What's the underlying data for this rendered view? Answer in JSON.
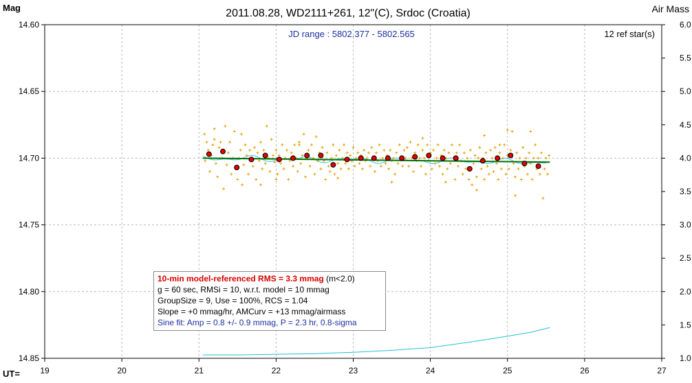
{
  "chart_data": {
    "type": "scatter",
    "title": "2011.08.28, WD2111+261, 12\"(C), Srdoc (Croatia)",
    "ylabel": "Mag",
    "y2label": "Air Mass",
    "xlabel": "UT=",
    "jd_range": "JD range : 5802.377 - 5802.565",
    "ref_stars": "12 ref star(s)",
    "xlim": [
      19,
      27
    ],
    "ylim": [
      14.85,
      14.6
    ],
    "y2lim": [
      1.0,
      6.0
    ],
    "grid": true,
    "x_ticks": [
      "19",
      "20",
      "21",
      "22",
      "23",
      "24",
      "25",
      "26",
      "27"
    ],
    "y_ticks": [
      "14.60",
      "14.65",
      "14.70",
      "14.75",
      "14.80",
      "14.85"
    ],
    "y2_ticks": [
      "6.0",
      "5.5",
      "5.0",
      "4.5",
      "4.0",
      "3.5",
      "3.0",
      "2.5",
      "2.0",
      "1.5",
      "1.0"
    ],
    "colors": {
      "raw": "#e0a000",
      "binned": "#e00000",
      "trend": "#007000",
      "sine": "#30c8e0",
      "airmass": "#20c0d0",
      "grid": "#bbbbbb"
    },
    "raw_points": [
      [
        21.07,
        14.682
      ],
      [
        21.08,
        14.702
      ],
      [
        21.1,
        14.688
      ],
      [
        21.12,
        14.694
      ],
      [
        21.14,
        14.71
      ],
      [
        21.16,
        14.698
      ],
      [
        21.18,
        14.69
      ],
      [
        21.2,
        14.686
      ],
      [
        21.22,
        14.704
      ],
      [
        21.24,
        14.714
      ],
      [
        21.26,
        14.692
      ],
      [
        21.28,
        14.688
      ],
      [
        21.3,
        14.7
      ],
      [
        21.32,
        14.723
      ],
      [
        21.34,
        14.676
      ],
      [
        21.36,
        14.705
      ],
      [
        21.38,
        14.696
      ],
      [
        21.4,
        14.688
      ],
      [
        21.42,
        14.712
      ],
      [
        21.44,
        14.7
      ],
      [
        21.46,
        14.68
      ],
      [
        21.48,
        14.708
      ],
      [
        21.5,
        14.716
      ],
      [
        21.52,
        14.7
      ],
      [
        21.54,
        14.694
      ],
      [
        21.56,
        14.72
      ],
      [
        21.58,
        14.705
      ],
      [
        21.6,
        14.69
      ],
      [
        21.62,
        14.698
      ],
      [
        21.64,
        14.712
      ],
      [
        21.66,
        14.694
      ],
      [
        21.68,
        14.7
      ],
      [
        21.7,
        14.706
      ],
      [
        21.72,
        14.692
      ],
      [
        21.74,
        14.716
      ],
      [
        21.76,
        14.696
      ],
      [
        21.78,
        14.702
      ],
      [
        21.8,
        14.688
      ],
      [
        21.82,
        14.708
      ],
      [
        21.84,
        14.694
      ],
      [
        21.86,
        14.704
      ],
      [
        21.88,
        14.676
      ],
      [
        21.9,
        14.7
      ],
      [
        21.92,
        14.71
      ],
      [
        21.94,
        14.686
      ],
      [
        21.96,
        14.698
      ],
      [
        21.98,
        14.703
      ],
      [
        22.0,
        14.694
      ],
      [
        22.02,
        14.712
      ],
      [
        22.04,
        14.698
      ],
      [
        22.06,
        14.704
      ],
      [
        22.08,
        14.69
      ],
      [
        22.1,
        14.708
      ],
      [
        22.12,
        14.7
      ],
      [
        22.14,
        14.694
      ],
      [
        22.16,
        14.716
      ],
      [
        22.18,
        14.702
      ],
      [
        22.2,
        14.696
      ],
      [
        22.22,
        14.706
      ],
      [
        22.24,
        14.69
      ],
      [
        22.26,
        14.7
      ],
      [
        22.28,
        14.71
      ],
      [
        22.3,
        14.688
      ],
      [
        22.32,
        14.704
      ],
      [
        22.34,
        14.698
      ],
      [
        22.36,
        14.682
      ],
      [
        22.38,
        14.714
      ],
      [
        22.4,
        14.7
      ],
      [
        22.42,
        14.694
      ],
      [
        22.44,
        14.706
      ],
      [
        22.46,
        14.69
      ],
      [
        22.48,
        14.7
      ],
      [
        22.5,
        14.712
      ],
      [
        22.52,
        14.684
      ],
      [
        22.54,
        14.702
      ],
      [
        22.56,
        14.696
      ],
      [
        22.58,
        14.708
      ],
      [
        22.6,
        14.692
      ],
      [
        22.62,
        14.702
      ],
      [
        22.64,
        14.716
      ],
      [
        22.66,
        14.696
      ],
      [
        22.68,
        14.706
      ],
      [
        22.7,
        14.71
      ],
      [
        22.72,
        14.7
      ],
      [
        22.74,
        14.69
      ],
      [
        22.76,
        14.712
      ],
      [
        22.78,
        14.698
      ],
      [
        22.8,
        14.704
      ],
      [
        22.82,
        14.694
      ],
      [
        22.84,
        14.708
      ],
      [
        22.86,
        14.7
      ],
      [
        22.88,
        14.69
      ],
      [
        22.9,
        14.704
      ],
      [
        22.92,
        14.696
      ],
      [
        22.94,
        14.708
      ],
      [
        22.96,
        14.698
      ],
      [
        22.98,
        14.702
      ],
      [
        23.0,
        14.692
      ],
      [
        23.02,
        14.706
      ],
      [
        23.04,
        14.7
      ],
      [
        23.06,
        14.696
      ],
      [
        23.08,
        14.704
      ],
      [
        23.1,
        14.698
      ],
      [
        23.12,
        14.708
      ],
      [
        23.14,
        14.694
      ],
      [
        23.16,
        14.702
      ],
      [
        23.18,
        14.7
      ],
      [
        23.2,
        14.696
      ],
      [
        23.22,
        14.706
      ],
      [
        23.24,
        14.692
      ],
      [
        23.26,
        14.7
      ],
      [
        23.28,
        14.71
      ],
      [
        23.3,
        14.696
      ],
      [
        23.32,
        14.702
      ],
      [
        23.34,
        14.69
      ],
      [
        23.36,
        14.706
      ],
      [
        23.38,
        14.7
      ],
      [
        23.4,
        14.694
      ],
      [
        23.42,
        14.704
      ],
      [
        23.44,
        14.698
      ],
      [
        23.46,
        14.708
      ],
      [
        23.48,
        14.694
      ],
      [
        23.5,
        14.702
      ],
      [
        23.52,
        14.7
      ],
      [
        23.54,
        14.712
      ],
      [
        23.56,
        14.696
      ],
      [
        23.58,
        14.704
      ],
      [
        23.6,
        14.69
      ],
      [
        23.62,
        14.7
      ],
      [
        23.64,
        14.706
      ],
      [
        23.66,
        14.694
      ],
      [
        23.68,
        14.7
      ],
      [
        23.7,
        14.692
      ],
      [
        23.72,
        14.706
      ],
      [
        23.74,
        14.688
      ],
      [
        23.76,
        14.7
      ],
      [
        23.78,
        14.71
      ],
      [
        23.8,
        14.696
      ],
      [
        23.82,
        14.702
      ],
      [
        23.84,
        14.69
      ],
      [
        23.86,
        14.7
      ],
      [
        23.88,
        14.706
      ],
      [
        23.9,
        14.694
      ],
      [
        23.92,
        14.7
      ],
      [
        23.94,
        14.712
      ],
      [
        23.96,
        14.69
      ],
      [
        23.98,
        14.702
      ],
      [
        24.0,
        14.696
      ],
      [
        24.02,
        14.708
      ],
      [
        24.04,
        14.694
      ],
      [
        24.06,
        14.704
      ],
      [
        24.08,
        14.7
      ],
      [
        24.1,
        14.69
      ],
      [
        24.12,
        14.706
      ],
      [
        24.14,
        14.698
      ],
      [
        24.16,
        14.712
      ],
      [
        24.18,
        14.694
      ],
      [
        24.2,
        14.7
      ],
      [
        24.22,
        14.708
      ],
      [
        24.24,
        14.696
      ],
      [
        24.26,
        14.704
      ],
      [
        24.28,
        14.69
      ],
      [
        24.3,
        14.7
      ],
      [
        24.32,
        14.716
      ],
      [
        24.34,
        14.696
      ],
      [
        24.36,
        14.706
      ],
      [
        24.38,
        14.69
      ],
      [
        24.4,
        14.702
      ],
      [
        24.42,
        14.712
      ],
      [
        24.44,
        14.696
      ],
      [
        24.46,
        14.708
      ],
      [
        24.48,
        14.7
      ],
      [
        24.5,
        14.716
      ],
      [
        24.52,
        14.694
      ],
      [
        24.54,
        14.72
      ],
      [
        24.56,
        14.704
      ],
      [
        24.58,
        14.698
      ],
      [
        24.6,
        14.714
      ],
      [
        24.62,
        14.7
      ],
      [
        24.64,
        14.692
      ],
      [
        24.66,
        14.708
      ],
      [
        24.68,
        14.7
      ],
      [
        24.7,
        14.716
      ],
      [
        24.72,
        14.696
      ],
      [
        24.74,
        14.706
      ],
      [
        24.76,
        14.712
      ],
      [
        24.78,
        14.694
      ],
      [
        24.8,
        14.7
      ],
      [
        24.82,
        14.71
      ],
      [
        24.84,
        14.692
      ],
      [
        24.86,
        14.704
      ],
      [
        24.88,
        14.716
      ],
      [
        24.9,
        14.696
      ],
      [
        24.92,
        14.708
      ],
      [
        24.94,
        14.7
      ],
      [
        24.96,
        14.69
      ],
      [
        24.98,
        14.712
      ],
      [
        25.0,
        14.698
      ],
      [
        25.02,
        14.708
      ],
      [
        25.04,
        14.694
      ],
      [
        25.06,
        14.68
      ],
      [
        25.08,
        14.704
      ],
      [
        25.1,
        14.714
      ],
      [
        25.12,
        14.696
      ],
      [
        25.14,
        14.708
      ],
      [
        25.16,
        14.7
      ],
      [
        25.18,
        14.716
      ],
      [
        25.2,
        14.692
      ],
      [
        25.22,
        14.706
      ],
      [
        25.24,
        14.7
      ],
      [
        25.26,
        14.712
      ],
      [
        25.28,
        14.696
      ],
      [
        25.3,
        14.704
      ],
      [
        25.32,
        14.716
      ],
      [
        25.34,
        14.7
      ],
      [
        25.36,
        14.69
      ],
      [
        25.38,
        14.708
      ],
      [
        25.4,
        14.7
      ],
      [
        25.42,
        14.712
      ],
      [
        25.44,
        14.696
      ],
      [
        25.46,
        14.73
      ],
      [
        25.48,
        14.708
      ],
      [
        25.5,
        14.7
      ],
      [
        25.52,
        14.712
      ],
      [
        25.54,
        14.698
      ],
      [
        21.2,
        14.678
      ],
      [
        21.55,
        14.682
      ],
      [
        22.3,
        14.69
      ],
      [
        22.8,
        14.715
      ],
      [
        23.9,
        14.685
      ],
      [
        24.2,
        14.718
      ],
      [
        24.7,
        14.683
      ],
      [
        25.0,
        14.679
      ],
      [
        25.3,
        14.68
      ],
      [
        25.1,
        14.728
      ],
      [
        24.6,
        14.724
      ],
      [
        21.8,
        14.72
      ],
      [
        22.0,
        14.716
      ],
      [
        23.5,
        14.718
      ],
      [
        24.9,
        14.69
      ]
    ],
    "binned_points": [
      [
        21.13,
        14.697
      ],
      [
        21.31,
        14.695
      ],
      [
        21.49,
        14.707
      ],
      [
        21.68,
        14.701
      ],
      [
        21.86,
        14.698
      ],
      [
        22.04,
        14.701
      ],
      [
        22.22,
        14.7
      ],
      [
        22.4,
        14.698
      ],
      [
        22.58,
        14.698
      ],
      [
        22.74,
        14.705
      ],
      [
        22.92,
        14.701
      ],
      [
        23.1,
        14.7
      ],
      [
        23.27,
        14.7
      ],
      [
        23.45,
        14.7
      ],
      [
        23.63,
        14.7
      ],
      [
        23.8,
        14.699
      ],
      [
        23.98,
        14.698
      ],
      [
        24.16,
        14.7
      ],
      [
        24.33,
        14.7
      ],
      [
        24.51,
        14.708
      ],
      [
        24.68,
        14.702
      ],
      [
        24.87,
        14.7
      ],
      [
        25.04,
        14.698
      ],
      [
        25.22,
        14.704
      ],
      [
        25.4,
        14.706
      ]
    ],
    "trend_line": [
      [
        21.05,
        14.7
      ],
      [
        25.55,
        14.703
      ]
    ],
    "sine_amp": 0.0008,
    "sine_period_hr": 2.3,
    "airmass_curve": [
      [
        21.05,
        1.05
      ],
      [
        21.5,
        1.05
      ],
      [
        22.0,
        1.06
      ],
      [
        22.5,
        1.07
      ],
      [
        23.0,
        1.09
      ],
      [
        23.5,
        1.12
      ],
      [
        24.0,
        1.16
      ],
      [
        24.5,
        1.24
      ],
      [
        25.0,
        1.33
      ],
      [
        25.3,
        1.39
      ],
      [
        25.55,
        1.46
      ]
    ]
  },
  "legend": {
    "line1_bold": "10-min model-referenced RMS = 3.3 mmag",
    "line1_rest": " (m<2.0)",
    "line2": "g = 60 sec, RMSi = 10, w.r.t. model = 10 mmag",
    "line3": "GroupSize = 9, Use = 100%, RCS = 1.04",
    "line4": "Slope = +0 mmag/hr, AMCurv = +13 mmag/airmass",
    "line5": "Sine fit: Amp = 0.8 +/- 0.9 mmag, P = 2.3 hr, 0.8-sigma"
  }
}
